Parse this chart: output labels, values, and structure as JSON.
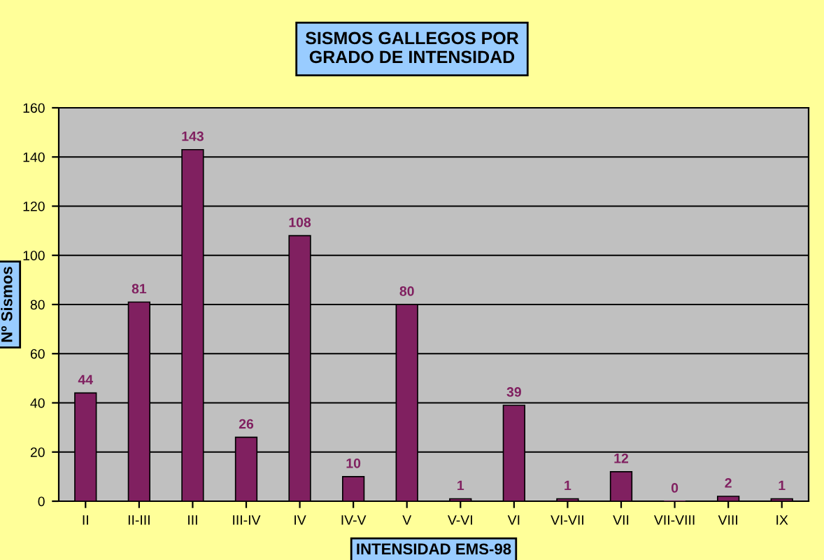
{
  "chart_data": {
    "type": "bar",
    "title": "SISMOS GALLEGOS POR\nGRADO DE INTENSIDAD",
    "xlabel": "INTENSIDAD EMS-98",
    "ylabel": "Nº Sismos",
    "categories": [
      "II",
      "II-III",
      "III",
      "III-IV",
      "IV",
      "IV-V",
      "V",
      "V-VI",
      "VI",
      "VI-VII",
      "VII",
      "VII-VIII",
      "VIII",
      "IX"
    ],
    "values": [
      44,
      81,
      143,
      26,
      108,
      10,
      80,
      1,
      39,
      1,
      12,
      0,
      2,
      1
    ],
    "color": "#802060",
    "ylim": [
      0,
      160
    ],
    "yticks": [
      0,
      20,
      40,
      60,
      80,
      100,
      120,
      140,
      160
    ],
    "grid": "y",
    "data_labels": true,
    "legend": false
  }
}
